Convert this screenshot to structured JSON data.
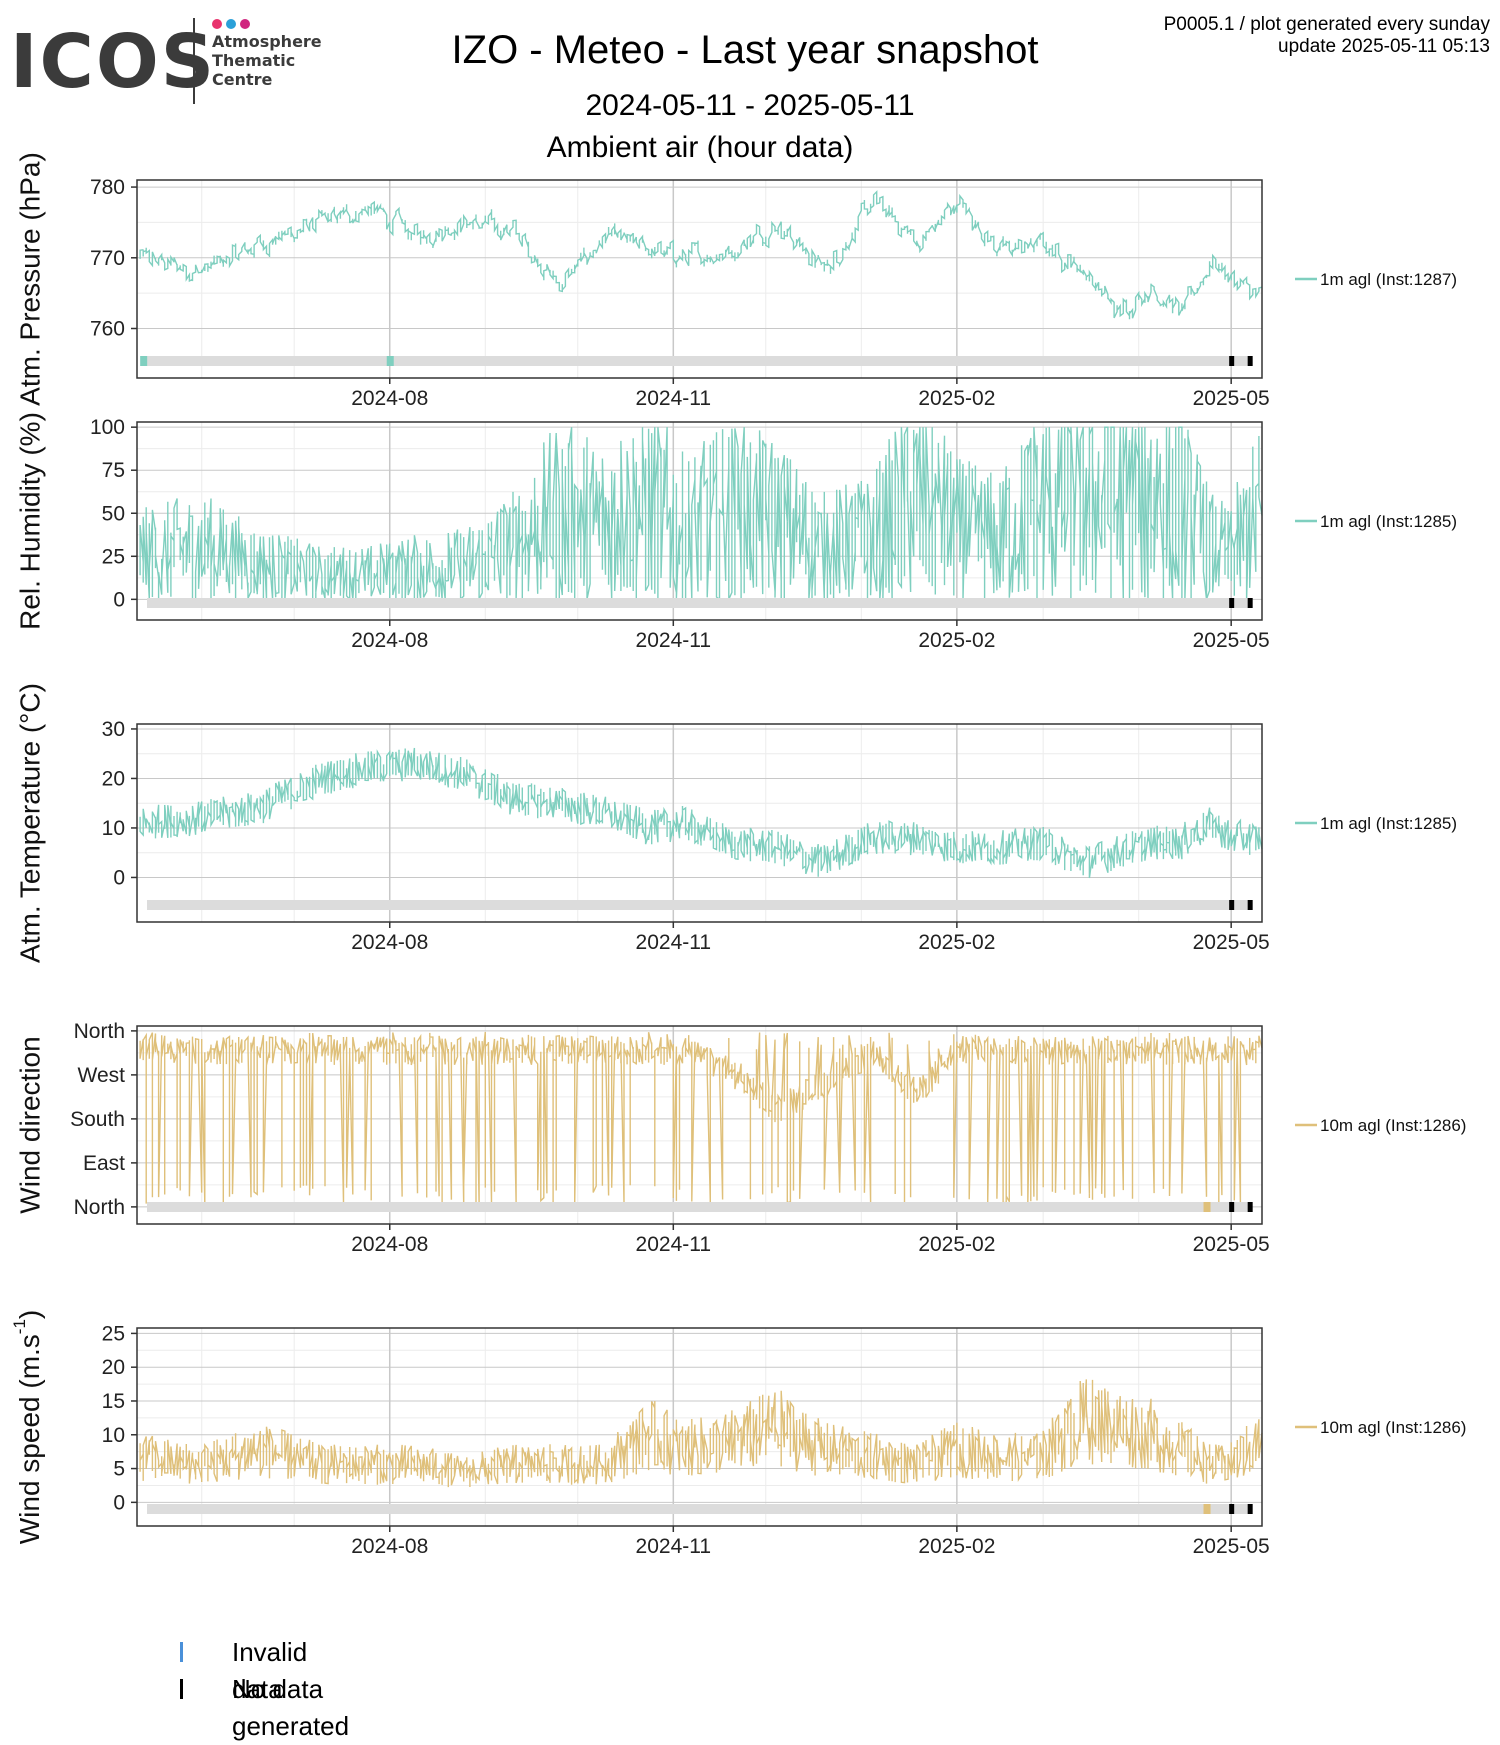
{
  "header": {
    "logo_text": "ICOS",
    "logo_sub": [
      "Atmosphere",
      "Thematic",
      "Centre"
    ],
    "logo_dot_colors": [
      "#e8336d",
      "#2aa0d8",
      "#d0267f"
    ],
    "title": "IZO - Meteo - Last year snapshot",
    "subtitle": "2024-05-11 - 2025-05-11",
    "section": "Ambient air (hour data)",
    "meta_line1": "P0005.1 / plot generated every sunday",
    "meta_line2": "update  2025-05-11 05:13"
  },
  "legend_bottom": {
    "invalid_label": "Invalid data",
    "invalid_color": "#4a90d9",
    "nodata_label": "No data generated",
    "nodata_color": "#000000"
  },
  "colors": {
    "teal": "#7fcfbf",
    "gold": "#dfc07a",
    "status_bar": "#dcdcdc",
    "grid_major": "#c8c8c8",
    "grid_minor": "#ececec"
  },
  "chart_data": [
    {
      "type": "line",
      "ylabel": "Atm. Pressure (hPa)",
      "x_range": [
        "2024-05-11",
        "2025-05-11"
      ],
      "x_ticks": [
        "2024-08",
        "2024-11",
        "2025-02",
        "2025-05"
      ],
      "ylim": [
        753,
        781
      ],
      "y_ticks": [
        760,
        770,
        780
      ],
      "y_tick_labels": [
        "760",
        "770",
        "780"
      ],
      "grid": true,
      "color_key": "teal",
      "series": [
        {
          "name": "1m agl (Inst:1287)",
          "x": [
            "2024-05-12",
            "2024-06-01",
            "2024-06-20",
            "2024-07-10",
            "2024-07-25",
            "2024-08-10",
            "2024-08-25",
            "2024-09-10",
            "2024-09-25",
            "2024-10-10",
            "2024-10-25",
            "2024-11-05",
            "2024-11-20",
            "2024-12-05",
            "2024-12-20",
            "2025-01-05",
            "2025-01-20",
            "2025-02-01",
            "2025-02-15",
            "2025-03-01",
            "2025-03-15",
            "2025-03-25",
            "2025-04-05",
            "2025-04-15",
            "2025-04-25",
            "2025-05-01",
            "2025-05-11"
          ],
          "values": [
            770,
            768,
            772,
            775,
            777,
            773,
            775,
            774,
            766,
            773,
            771,
            770,
            771,
            775,
            768,
            778,
            772,
            778,
            771,
            772,
            768,
            762,
            766,
            762,
            770,
            767,
            764
          ]
        }
      ],
      "status_marks": {
        "invalid": [
          "2024-05-13",
          "2024-08-01"
        ],
        "nodata": [
          "2025-05-01",
          "2025-05-07"
        ]
      }
    },
    {
      "type": "line",
      "ylabel": "Rel. Humidity (%)",
      "x_range": [
        "2024-05-11",
        "2025-05-11"
      ],
      "x_ticks": [
        "2024-08",
        "2024-11",
        "2025-02",
        "2025-05"
      ],
      "ylim": [
        -12,
        103
      ],
      "y_ticks": [
        0,
        25,
        50,
        75,
        100
      ],
      "y_tick_labels": [
        "0",
        "25",
        "50",
        "75",
        "100"
      ],
      "grid": true,
      "color_key": "teal",
      "series": [
        {
          "name": "1m agl (Inst:1285)",
          "x": [
            "2024-05-12",
            "2024-06-01",
            "2024-06-20",
            "2024-07-10",
            "2024-07-25",
            "2024-08-10",
            "2024-08-25",
            "2024-09-10",
            "2024-09-25",
            "2024-10-10",
            "2024-10-25",
            "2024-11-05",
            "2024-11-20",
            "2024-12-05",
            "2024-12-20",
            "2025-01-05",
            "2025-01-20",
            "2025-02-01",
            "2025-02-15",
            "2025-03-01",
            "2025-03-15",
            "2025-03-25",
            "2025-04-05",
            "2025-04-15",
            "2025-04-25",
            "2025-05-01",
            "2025-05-11"
          ],
          "values": [
            25,
            30,
            20,
            15,
            15,
            18,
            20,
            30,
            50,
            45,
            55,
            40,
            50,
            45,
            30,
            35,
            60,
            40,
            35,
            55,
            65,
            55,
            60,
            55,
            30,
            25,
            50
          ]
        }
      ],
      "status_marks": {
        "invalid": [],
        "nodata": [
          "2025-05-01",
          "2025-05-07"
        ]
      }
    },
    {
      "type": "line",
      "ylabel": "Atm. Temperature (°C)",
      "x_range": [
        "2024-05-11",
        "2025-05-11"
      ],
      "x_ticks": [
        "2024-08",
        "2024-11",
        "2025-02",
        "2025-05"
      ],
      "ylim": [
        -9,
        31
      ],
      "y_ticks": [
        0,
        10,
        20,
        30
      ],
      "y_tick_labels": [
        "0",
        "10",
        "20",
        "30"
      ],
      "grid": true,
      "color_key": "teal",
      "series": [
        {
          "name": "1m agl (Inst:1285)",
          "x": [
            "2024-05-12",
            "2024-06-01",
            "2024-06-20",
            "2024-07-10",
            "2024-07-25",
            "2024-08-10",
            "2024-08-25",
            "2024-09-10",
            "2024-09-25",
            "2024-10-10",
            "2024-10-25",
            "2024-11-05",
            "2024-11-20",
            "2024-12-05",
            "2024-12-20",
            "2025-01-05",
            "2025-01-20",
            "2025-02-01",
            "2025-02-15",
            "2025-03-01",
            "2025-03-15",
            "2025-03-25",
            "2025-04-05",
            "2025-04-15",
            "2025-04-25",
            "2025-05-01",
            "2025-05-11"
          ],
          "values": [
            11,
            12,
            14,
            20,
            22,
            23,
            21,
            16,
            15,
            13,
            10,
            11,
            7,
            6,
            3,
            8,
            8,
            6,
            6,
            7,
            3,
            5,
            7,
            7,
            11,
            8,
            8
          ]
        }
      ],
      "status_marks": {
        "invalid": [],
        "nodata": [
          "2025-05-01",
          "2025-05-07"
        ]
      }
    },
    {
      "type": "line",
      "ylabel": "Wind direction",
      "x_range": [
        "2024-05-11",
        "2025-05-11"
      ],
      "x_ticks": [
        "2024-08",
        "2024-11",
        "2025-02",
        "2025-05"
      ],
      "ylim": [
        -35,
        370
      ],
      "y_ticks": [
        0,
        90,
        180,
        270,
        360
      ],
      "y_tick_labels": [
        "North",
        "East",
        "South",
        "West",
        "North"
      ],
      "grid": true,
      "color_key": "gold",
      "series": [
        {
          "name": "10m agl (Inst:1286)",
          "x": [
            "2024-05-12",
            "2024-06-01",
            "2024-06-20",
            "2024-07-10",
            "2024-07-25",
            "2024-08-10",
            "2024-08-25",
            "2024-09-10",
            "2024-09-25",
            "2024-10-10",
            "2024-10-25",
            "2024-11-05",
            "2024-11-20",
            "2024-12-05",
            "2024-12-20",
            "2025-01-05",
            "2025-01-20",
            "2025-02-01",
            "2025-02-15",
            "2025-03-01",
            "2025-03-15",
            "2025-03-25",
            "2025-04-05",
            "2025-04-15",
            "2025-04-25",
            "2025-05-01",
            "2025-05-11"
          ],
          "values": [
            330,
            320,
            320,
            320,
            320,
            320,
            320,
            320,
            320,
            320,
            320,
            320,
            280,
            200,
            250,
            320,
            230,
            320,
            320,
            320,
            320,
            320,
            320,
            320,
            320,
            320,
            320
          ]
        }
      ],
      "status_marks": {
        "invalid": [
          "2025-04-23"
        ],
        "nodata": [
          "2025-05-01",
          "2025-05-07"
        ]
      }
    },
    {
      "type": "line",
      "ylabel": "Wind speed (m.s",
      "ylabel_sup": "-1",
      "ylabel_end": ")",
      "x_range": [
        "2024-05-11",
        "2025-05-11"
      ],
      "x_ticks": [
        "2024-08",
        "2024-11",
        "2025-02",
        "2025-05"
      ],
      "ylim": [
        -3.5,
        25.8
      ],
      "y_ticks": [
        0,
        5,
        10,
        15,
        20,
        25
      ],
      "y_tick_labels": [
        "0",
        "5",
        "10",
        "15",
        "20",
        "25"
      ],
      "grid": true,
      "color_key": "gold",
      "series": [
        {
          "name": "10m agl (Inst:1286)",
          "x": [
            "2024-05-12",
            "2024-06-01",
            "2024-06-20",
            "2024-07-10",
            "2024-07-25",
            "2024-08-10",
            "2024-08-25",
            "2024-09-10",
            "2024-09-25",
            "2024-10-10",
            "2024-10-25",
            "2024-11-05",
            "2024-11-20",
            "2024-12-05",
            "2024-12-20",
            "2025-01-05",
            "2025-01-20",
            "2025-02-01",
            "2025-02-15",
            "2025-03-01",
            "2025-03-15",
            "2025-03-25",
            "2025-04-05",
            "2025-04-15",
            "2025-04-25",
            "2025-05-01",
            "2025-05-11"
          ],
          "values": [
            6,
            5,
            7,
            5,
            5,
            5,
            4,
            5,
            5,
            5,
            9,
            7,
            8,
            10,
            7,
            6,
            5,
            7,
            6,
            6,
            11,
            10,
            9,
            7,
            5,
            5,
            8
          ]
        }
      ],
      "status_marks": {
        "invalid": [
          "2025-04-23"
        ],
        "nodata": [
          "2025-05-01",
          "2025-05-07"
        ]
      }
    }
  ]
}
